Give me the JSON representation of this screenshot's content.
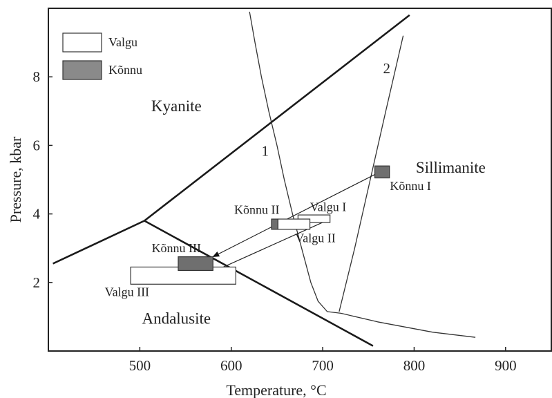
{
  "chart_data": {
    "type": "scatter",
    "title": "",
    "xlabel": "Temperature, °C",
    "ylabel": "Pressure, kbar",
    "xlim": [
      400,
      950
    ],
    "ylim": [
      0,
      10
    ],
    "x_ticks": [
      500,
      600,
      700,
      800,
      900
    ],
    "y_ticks": [
      2,
      4,
      6,
      8
    ],
    "grid": false,
    "legend": {
      "position": "top-left",
      "entries": [
        {
          "label": "Valgu",
          "fill": "#ffffff"
        },
        {
          "label": "Kõnnu",
          "fill": "#8a8a8a"
        }
      ]
    },
    "phase_fields": [
      {
        "label": "Kyanite",
        "x": 540,
        "y": 7.0
      },
      {
        "label": "Sillimanite",
        "x": 840,
        "y": 5.2
      },
      {
        "label": "Andalusite",
        "x": 540,
        "y": 0.8
      }
    ],
    "phase_boundaries": [
      {
        "name": "Kyanite-Andalusite",
        "points": [
          [
            405,
            2.55
          ],
          [
            505,
            3.8
          ]
        ]
      },
      {
        "name": "Kyanite-Sillimanite",
        "points": [
          [
            505,
            3.8
          ],
          [
            795,
            9.8
          ]
        ]
      },
      {
        "name": "Andalusite-Sillimanite",
        "points": [
          [
            505,
            3.8
          ],
          [
            755,
            0.15
          ]
        ]
      }
    ],
    "curves": [
      {
        "label": "1",
        "label_at": [
          637,
          5.7
        ],
        "points": [
          [
            620,
            9.9
          ],
          [
            626,
            9.0
          ],
          [
            633,
            8.0
          ],
          [
            641,
            7.0
          ],
          [
            650,
            6.0
          ],
          [
            658,
            5.0
          ],
          [
            667,
            4.0
          ],
          [
            677,
            3.0
          ],
          [
            687,
            2.0
          ],
          [
            695,
            1.45
          ],
          [
            705,
            1.15
          ],
          [
            720,
            1.1
          ],
          [
            760,
            0.85
          ],
          [
            820,
            0.55
          ],
          [
            867,
            0.4
          ]
        ]
      },
      {
        "label": "2",
        "label_at": [
          770,
          8.1
        ],
        "points": [
          [
            718,
            1.15
          ],
          [
            735,
            3.0
          ],
          [
            752,
            5.0
          ],
          [
            769,
            7.0
          ],
          [
            788,
            9.2
          ]
        ]
      }
    ],
    "pt_boxes": [
      {
        "label": "Valgu I",
        "group": "Valgu",
        "x": [
          673,
          708
        ],
        "y": [
          3.75,
          3.97
        ],
        "label_at": [
          706,
          4.08
        ]
      },
      {
        "label": "Valgu II",
        "group": "Valgu",
        "x": [
          651,
          686
        ],
        "y": [
          3.55,
          3.85
        ],
        "label_at": [
          692,
          3.18
        ]
      },
      {
        "label": "Valgu III",
        "group": "Valgu",
        "x": [
          490,
          605
        ],
        "y": [
          1.95,
          2.45
        ],
        "label_at": [
          486,
          1.6
        ]
      },
      {
        "label": "Kõnnu I",
        "group": "Kõnnu",
        "x": [
          757,
          773
        ],
        "y": [
          5.05,
          5.4
        ],
        "label_at": [
          796,
          4.7
        ]
      },
      {
        "label": "Kõnnu II",
        "group": "Kõnnu",
        "x": [
          644,
          651
        ],
        "y": [
          3.55,
          3.85
        ],
        "label_at": [
          628,
          4.0
        ]
      },
      {
        "label": "Kõnnu III",
        "group": "Kõnnu",
        "x": [
          542,
          580
        ],
        "y": [
          2.35,
          2.75
        ],
        "label_at": [
          540,
          2.88
        ]
      }
    ],
    "paths": [
      {
        "from": [
          757,
          5.15
        ],
        "to": [
          580,
          2.75
        ]
      },
      {
        "from": [
          708,
          3.85
        ],
        "to": [
          558,
          2.05
        ]
      }
    ]
  },
  "colors": {
    "axis": "#222222",
    "boundary": "#1a1a1a",
    "curve": "#333333",
    "valgu_fill": "#ffffff",
    "konnu_fill": "#8a8a8a",
    "konnu_dark": "#6f6f6f"
  }
}
